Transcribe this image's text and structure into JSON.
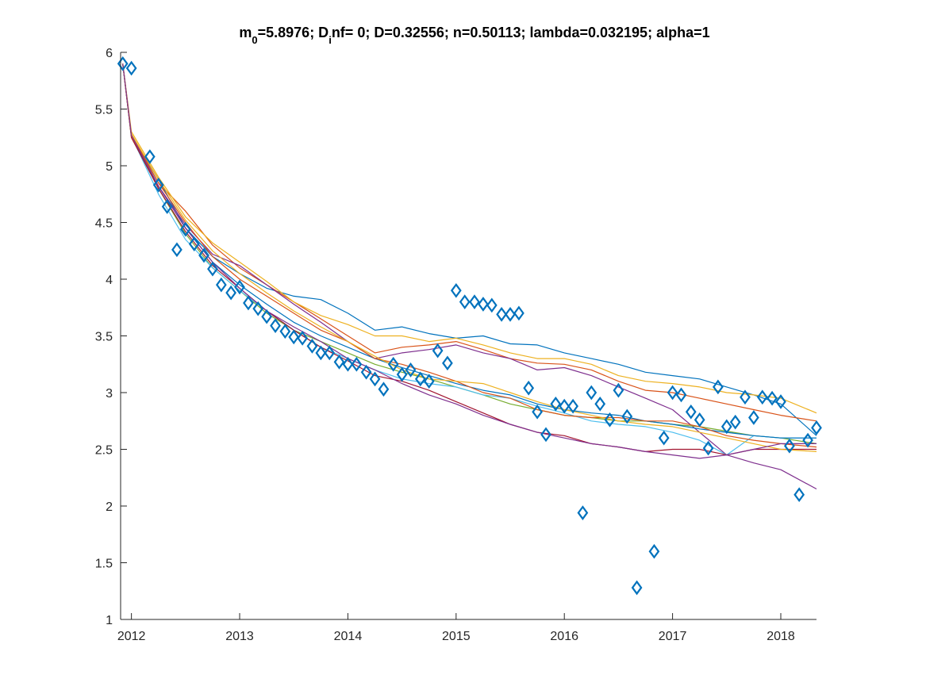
{
  "chart_data": {
    "type": "line",
    "title": {
      "parts": [
        {
          "text": "m",
          "style": "normal"
        },
        {
          "text": "0",
          "style": "sub"
        },
        {
          "text": "=5.8976; D",
          "style": "normal"
        },
        {
          "text": "i",
          "style": "sub"
        },
        {
          "text": "nf= 0; D=0.32556; n=0.50113; lambda=0.032195; alpha=1",
          "style": "normal"
        }
      ]
    },
    "xlabel": "",
    "ylabel": "",
    "xlim": [
      2011.9,
      2018.33
    ],
    "ylim": [
      1,
      6
    ],
    "x_ticks": [
      {
        "value": 2012,
        "label": "2012"
      },
      {
        "value": 2013,
        "label": "2013"
      },
      {
        "value": 2014,
        "label": "2014"
      },
      {
        "value": 2015,
        "label": "2015"
      },
      {
        "value": 2016,
        "label": "2016"
      },
      {
        "value": 2017,
        "label": "2017"
      },
      {
        "value": 2018,
        "label": "2018"
      }
    ],
    "y_ticks": [
      {
        "value": 1,
        "label": "1"
      },
      {
        "value": 1.5,
        "label": "1.5"
      },
      {
        "value": 2,
        "label": "2"
      },
      {
        "value": 2.5,
        "label": "2.5"
      },
      {
        "value": 3,
        "label": "3"
      },
      {
        "value": 3.5,
        "label": "3.5"
      },
      {
        "value": 4,
        "label": "4"
      },
      {
        "value": 4.5,
        "label": "4.5"
      },
      {
        "value": 5,
        "label": "5"
      },
      {
        "value": 5.5,
        "label": "5.5"
      },
      {
        "value": 6,
        "label": "6"
      }
    ],
    "grid": false,
    "legend": "none",
    "observations": {
      "marker": "diamond",
      "color": "#0072BD",
      "x": [
        2011.92,
        2012.0,
        2012.17,
        2012.25,
        2012.33,
        2012.42,
        2012.5,
        2012.58,
        2012.67,
        2012.75,
        2012.83,
        2012.92,
        2013.0,
        2013.08,
        2013.17,
        2013.25,
        2013.33,
        2013.42,
        2013.5,
        2013.58,
        2013.67,
        2013.75,
        2013.83,
        2013.92,
        2014.0,
        2014.08,
        2014.17,
        2014.25,
        2014.33,
        2014.42,
        2014.5,
        2014.58,
        2014.67,
        2014.75,
        2014.83,
        2014.92,
        2015.0,
        2015.08,
        2015.17,
        2015.25,
        2015.33,
        2015.42,
        2015.5,
        2015.58,
        2015.67,
        2015.75,
        2015.83,
        2015.92,
        2016.0,
        2016.08,
        2016.17,
        2016.25,
        2016.33,
        2016.42,
        2016.5,
        2016.58,
        2016.67,
        2016.83,
        2016.92,
        2017.0,
        2017.08,
        2017.17,
        2017.25,
        2017.33,
        2017.42,
        2017.5,
        2017.58,
        2017.67,
        2017.75,
        2017.83,
        2017.92,
        2018.0,
        2018.08,
        2018.17,
        2018.25,
        2018.33
      ],
      "y": [
        5.9,
        5.86,
        5.08,
        4.83,
        4.64,
        4.26,
        4.44,
        4.31,
        4.21,
        4.09,
        3.95,
        3.88,
        3.93,
        3.79,
        3.74,
        3.67,
        3.59,
        3.54,
        3.49,
        3.48,
        3.41,
        3.35,
        3.35,
        3.27,
        3.25,
        3.25,
        3.18,
        3.12,
        3.03,
        3.25,
        3.16,
        3.2,
        3.12,
        3.1,
        3.37,
        3.26,
        3.9,
        3.8,
        3.8,
        3.78,
        3.77,
        3.69,
        3.69,
        3.7,
        3.04,
        2.83,
        2.63,
        2.9,
        2.88,
        2.88,
        1.94,
        3.0,
        2.9,
        2.76,
        3.02,
        2.79,
        1.28,
        1.6,
        2.6,
        3.0,
        2.98,
        2.83,
        2.76,
        2.51,
        3.05,
        2.7,
        2.74,
        2.96,
        2.78,
        2.96,
        2.95,
        2.92,
        2.53,
        2.1,
        2.58,
        2.69
      ]
    },
    "series": [
      {
        "color": "#0072BD",
        "x": [
          2011.92,
          2012.0,
          2012.25,
          2012.5,
          2012.75,
          2013.0,
          2013.25,
          2013.5,
          2013.75,
          2014.0,
          2014.25,
          2014.5,
          2014.75,
          2015.0,
          2015.25,
          2015.5,
          2015.75,
          2016.0,
          2016.25,
          2016.5,
          2016.75,
          2017.0,
          2017.25,
          2017.5,
          2017.75,
          2018.0,
          2018.33
        ],
        "y": [
          5.9,
          5.27,
          4.88,
          4.45,
          4.2,
          4.05,
          3.92,
          3.85,
          3.82,
          3.7,
          3.55,
          3.58,
          3.52,
          3.48,
          3.5,
          3.43,
          3.42,
          3.35,
          3.3,
          3.25,
          3.18,
          3.15,
          3.12,
          3.05,
          2.98,
          2.9,
          2.62
        ]
      },
      {
        "color": "#D95319",
        "x": [
          2011.92,
          2012.0,
          2012.25,
          2012.5,
          2012.75,
          2013.0,
          2013.25,
          2013.5,
          2013.75,
          2014.0,
          2014.25,
          2014.5,
          2014.75,
          2015.0,
          2015.25,
          2015.5,
          2015.75,
          2016.0,
          2016.25,
          2016.5,
          2016.75,
          2017.0,
          2017.25,
          2017.5,
          2017.75,
          2018.0,
          2018.33
        ],
        "y": [
          5.9,
          5.28,
          4.85,
          4.6,
          4.3,
          4.1,
          3.95,
          3.8,
          3.65,
          3.5,
          3.35,
          3.4,
          3.42,
          3.45,
          3.38,
          3.3,
          3.26,
          3.25,
          3.2,
          3.1,
          3.02,
          3.0,
          2.95,
          2.9,
          2.85,
          2.8,
          2.75
        ]
      },
      {
        "color": "#EDB120",
        "x": [
          2011.92,
          2012.0,
          2012.25,
          2012.5,
          2012.75,
          2013.0,
          2013.25,
          2013.5,
          2013.75,
          2014.0,
          2014.25,
          2014.5,
          2014.75,
          2015.0,
          2015.25,
          2015.5,
          2015.75,
          2016.0,
          2016.25,
          2016.5,
          2016.75,
          2017.0,
          2017.25,
          2017.5,
          2017.75,
          2018.0,
          2018.33
        ],
        "y": [
          5.9,
          5.3,
          4.9,
          4.55,
          4.32,
          4.15,
          3.98,
          3.8,
          3.68,
          3.6,
          3.5,
          3.5,
          3.45,
          3.48,
          3.42,
          3.35,
          3.3,
          3.3,
          3.25,
          3.15,
          3.1,
          3.08,
          3.05,
          3.0,
          2.98,
          2.95,
          2.82
        ]
      },
      {
        "color": "#7E2F8E",
        "x": [
          2011.92,
          2012.0,
          2012.25,
          2012.5,
          2012.75,
          2013.0,
          2013.25,
          2013.5,
          2013.75,
          2014.0,
          2014.25,
          2014.5,
          2014.75,
          2015.0,
          2015.25,
          2015.5,
          2015.75,
          2016.0,
          2016.25,
          2016.5,
          2016.75,
          2017.0,
          2017.25,
          2017.5,
          2017.75,
          2018.0,
          2018.33
        ],
        "y": [
          5.9,
          5.26,
          4.82,
          4.48,
          4.22,
          4.12,
          3.95,
          3.78,
          3.62,
          3.45,
          3.3,
          3.35,
          3.38,
          3.42,
          3.35,
          3.3,
          3.2,
          3.22,
          3.15,
          3.05,
          2.95,
          2.85,
          2.65,
          2.45,
          2.38,
          2.32,
          2.15
        ]
      },
      {
        "color": "#77AC30",
        "x": [
          2011.92,
          2012.0,
          2012.25,
          2012.5,
          2012.75,
          2013.0,
          2013.25,
          2013.5,
          2013.75,
          2014.0,
          2014.25,
          2014.5,
          2014.75,
          2015.0,
          2015.25,
          2015.5,
          2015.75,
          2016.0,
          2016.25,
          2016.5,
          2016.75,
          2017.0,
          2017.25,
          2017.5,
          2017.75,
          2018.0,
          2018.33
        ],
        "y": [
          5.9,
          5.25,
          4.8,
          4.4,
          4.1,
          3.9,
          3.7,
          3.55,
          3.45,
          3.35,
          3.25,
          3.18,
          3.12,
          3.05,
          2.98,
          2.9,
          2.85,
          2.8,
          2.78,
          2.75,
          2.75,
          2.72,
          2.7,
          2.66,
          2.62,
          2.6,
          2.55
        ]
      },
      {
        "color": "#4DBEEE",
        "x": [
          2011.92,
          2012.0,
          2012.25,
          2012.5,
          2012.75,
          2013.0,
          2013.25,
          2013.5,
          2013.75,
          2014.0,
          2014.25,
          2014.5,
          2014.75,
          2015.0,
          2015.25,
          2015.5,
          2015.75,
          2016.0,
          2016.25,
          2016.5,
          2016.75,
          2017.0,
          2017.25,
          2017.5,
          2017.75,
          2018.0,
          2018.33
        ],
        "y": [
          5.9,
          5.26,
          4.75,
          4.35,
          4.1,
          3.9,
          3.72,
          3.55,
          3.4,
          3.3,
          3.2,
          3.12,
          3.08,
          3.05,
          2.98,
          2.95,
          2.88,
          2.82,
          2.75,
          2.72,
          2.7,
          2.65,
          2.58,
          2.45,
          2.62,
          2.6,
          2.6
        ]
      },
      {
        "color": "#A2142F",
        "x": [
          2011.92,
          2012.0,
          2012.25,
          2012.5,
          2012.75,
          2013.0,
          2013.25,
          2013.5,
          2013.75,
          2014.0,
          2014.25,
          2014.5,
          2014.75,
          2015.0,
          2015.25,
          2015.5,
          2015.75,
          2016.0,
          2016.25,
          2016.5,
          2016.75,
          2017.0,
          2017.25,
          2017.5,
          2017.75,
          2018.0,
          2018.33
        ],
        "y": [
          5.9,
          5.25,
          4.8,
          4.42,
          4.12,
          3.92,
          3.72,
          3.55,
          3.4,
          3.28,
          3.15,
          3.1,
          3.02,
          2.92,
          2.82,
          2.72,
          2.65,
          2.62,
          2.55,
          2.52,
          2.48,
          2.5,
          2.5,
          2.45,
          2.5,
          2.5,
          2.5
        ]
      },
      {
        "color": "#0072BD",
        "x": [
          2011.92,
          2012.0,
          2012.25,
          2012.5,
          2012.75,
          2013.0,
          2013.25,
          2013.5,
          2013.75,
          2014.0,
          2014.25,
          2014.5,
          2014.75,
          2015.0,
          2015.25,
          2015.5,
          2015.75,
          2016.0,
          2016.25,
          2016.5,
          2016.75,
          2017.0,
          2017.25,
          2017.5,
          2017.75,
          2018.0,
          2018.33
        ],
        "y": [
          5.9,
          5.27,
          4.82,
          4.45,
          4.15,
          3.95,
          3.78,
          3.62,
          3.5,
          3.4,
          3.3,
          3.22,
          3.15,
          3.08,
          3.02,
          2.98,
          2.9,
          2.85,
          2.82,
          2.8,
          2.75,
          2.72,
          2.68,
          2.65,
          2.62,
          2.6,
          2.6
        ]
      },
      {
        "color": "#D95319",
        "x": [
          2011.92,
          2012.0,
          2012.25,
          2012.5,
          2012.75,
          2013.0,
          2013.25,
          2013.5,
          2013.75,
          2014.0,
          2014.25,
          2014.5,
          2014.75,
          2015.0,
          2015.25,
          2015.5,
          2015.75,
          2016.0,
          2016.25,
          2016.5,
          2016.75,
          2017.0,
          2017.25,
          2017.5,
          2017.75,
          2018.0,
          2018.33
        ],
        "y": [
          5.9,
          5.26,
          4.85,
          4.5,
          4.2,
          4.0,
          3.85,
          3.7,
          3.55,
          3.45,
          3.3,
          3.25,
          3.18,
          3.1,
          3.0,
          2.95,
          2.85,
          2.8,
          2.78,
          2.78,
          2.75,
          2.75,
          2.7,
          2.62,
          2.58,
          2.55,
          2.52
        ]
      },
      {
        "color": "#EDB120",
        "x": [
          2011.92,
          2012.0,
          2012.25,
          2012.5,
          2012.75,
          2013.0,
          2013.25,
          2013.5,
          2013.75,
          2014.0,
          2014.25,
          2014.5,
          2014.75,
          2015.0,
          2015.25,
          2015.5,
          2015.75,
          2016.0,
          2016.25,
          2016.5,
          2016.75,
          2017.0,
          2017.25,
          2017.5,
          2017.75,
          2018.0,
          2018.33
        ],
        "y": [
          5.9,
          5.28,
          4.88,
          4.52,
          4.25,
          4.05,
          3.88,
          3.72,
          3.58,
          3.45,
          3.32,
          3.2,
          3.12,
          3.1,
          3.08,
          3.0,
          2.92,
          2.85,
          2.8,
          2.75,
          2.72,
          2.7,
          2.65,
          2.6,
          2.55,
          2.5,
          2.48
        ]
      },
      {
        "color": "#7E2F8E",
        "x": [
          2011.92,
          2012.0,
          2012.25,
          2012.5,
          2012.75,
          2013.0,
          2013.25,
          2013.5,
          2013.75,
          2014.0,
          2014.25,
          2014.5,
          2014.75,
          2015.0,
          2015.25,
          2015.5,
          2015.75,
          2016.0,
          2016.25,
          2016.5,
          2016.75,
          2017.0,
          2017.25,
          2017.5,
          2017.75,
          2018.0,
          2018.33
        ],
        "y": [
          5.9,
          5.27,
          4.82,
          4.45,
          4.15,
          3.92,
          3.72,
          3.58,
          3.45,
          3.3,
          3.2,
          3.08,
          2.98,
          2.9,
          2.8,
          2.72,
          2.65,
          2.6,
          2.55,
          2.52,
          2.48,
          2.45,
          2.42,
          2.45,
          2.5,
          2.55,
          2.55
        ]
      }
    ]
  }
}
